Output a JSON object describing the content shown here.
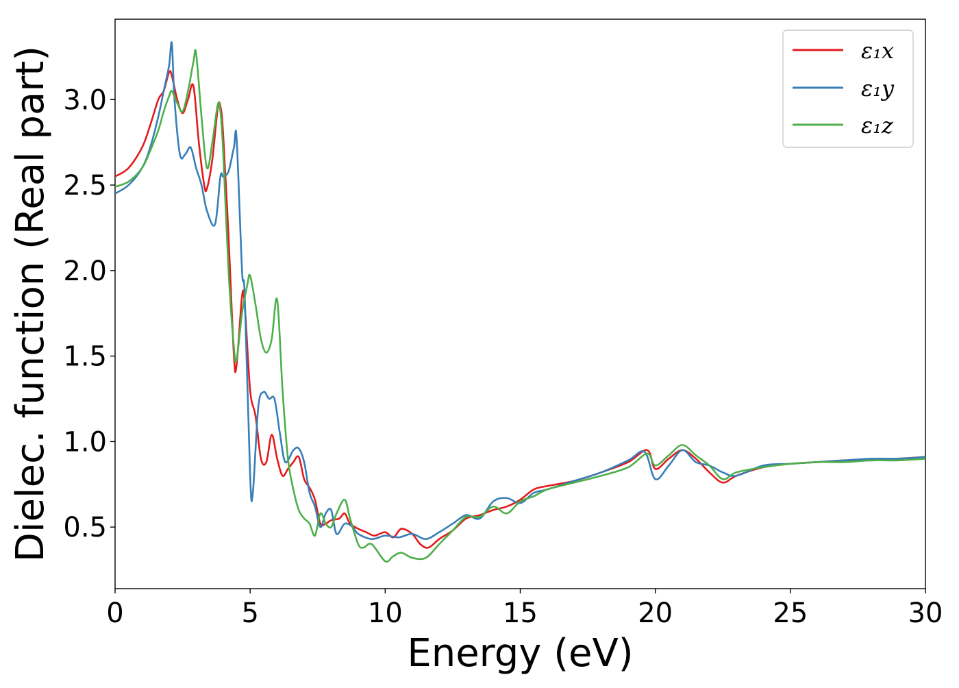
{
  "chart_data": {
    "type": "line",
    "title": "",
    "xlabel": "Energy (eV)",
    "ylabel": "Dielec. function (Real part)",
    "xlim": [
      0,
      30
    ],
    "ylim": [
      0.14,
      3.47
    ],
    "xticks": [
      0,
      5,
      10,
      15,
      20,
      25,
      30
    ],
    "yticks": [
      0.5,
      1.0,
      1.5,
      2.0,
      2.5,
      3.0
    ],
    "xtick_labels": [
      "0",
      "5",
      "10",
      "15",
      "20",
      "25",
      "30"
    ],
    "ytick_labels": [
      "0.5",
      "1.0",
      "1.5",
      "2.0",
      "2.5",
      "3.0"
    ],
    "grid": false,
    "legend_position": "top-right",
    "series": [
      {
        "name": "ε₁x",
        "color": "#e41a1c",
        "x": [
          0,
          0.5,
          1.0,
          1.3,
          1.6,
          1.8,
          2.0,
          2.1,
          2.3,
          2.5,
          2.7,
          2.9,
          3.1,
          3.3,
          3.4,
          3.6,
          3.8,
          3.9,
          4.0,
          4.2,
          4.4,
          4.5,
          4.7,
          4.8,
          5.0,
          5.2,
          5.4,
          5.6,
          5.8,
          6.0,
          6.2,
          6.4,
          6.6,
          6.8,
          7.0,
          7.2,
          7.4,
          7.6,
          7.8,
          8.0,
          8.3,
          8.5,
          8.7,
          9.0,
          9.3,
          9.6,
          10.0,
          10.3,
          10.6,
          11.0,
          11.3,
          11.6,
          12.0,
          12.5,
          13.0,
          13.5,
          14.0,
          14.5,
          15.0,
          15.5,
          16.0,
          17.0,
          18.0,
          19.0,
          19.7,
          20.0,
          20.5,
          21.0,
          21.5,
          22.0,
          22.5,
          23.0,
          24.0,
          25.0,
          26.0,
          27.0,
          28.0,
          29.0,
          30.0
        ],
        "y": [
          2.55,
          2.6,
          2.72,
          2.85,
          3.0,
          3.05,
          3.16,
          3.14,
          3.0,
          2.92,
          3.0,
          3.08,
          2.75,
          2.5,
          2.48,
          2.65,
          2.95,
          2.96,
          2.8,
          2.2,
          1.5,
          1.45,
          1.85,
          1.8,
          1.3,
          1.15,
          0.9,
          0.88,
          1.04,
          0.9,
          0.8,
          0.84,
          0.88,
          0.91,
          0.78,
          0.73,
          0.66,
          0.52,
          0.52,
          0.54,
          0.55,
          0.58,
          0.52,
          0.49,
          0.47,
          0.45,
          0.47,
          0.44,
          0.49,
          0.46,
          0.4,
          0.38,
          0.43,
          0.48,
          0.55,
          0.57,
          0.6,
          0.62,
          0.66,
          0.72,
          0.74,
          0.77,
          0.82,
          0.88,
          0.95,
          0.84,
          0.9,
          0.95,
          0.9,
          0.82,
          0.76,
          0.8,
          0.85,
          0.87,
          0.88,
          0.89,
          0.89,
          0.9,
          0.91
        ]
      },
      {
        "name": "ε₁y",
        "color": "#377eb8",
        "x": [
          0,
          0.5,
          1.0,
          1.3,
          1.6,
          1.8,
          2.0,
          2.1,
          2.2,
          2.4,
          2.6,
          2.8,
          3.0,
          3.2,
          3.4,
          3.7,
          3.9,
          4.0,
          4.2,
          4.4,
          4.5,
          4.7,
          4.8,
          5.0,
          5.1,
          5.3,
          5.5,
          5.7,
          5.9,
          6.1,
          6.3,
          6.6,
          6.8,
          7.0,
          7.2,
          7.4,
          7.6,
          7.8,
          8.0,
          8.2,
          8.5,
          8.8,
          9.0,
          9.5,
          10.0,
          10.5,
          11.0,
          11.5,
          12.0,
          12.5,
          13.0,
          13.5,
          14.0,
          14.5,
          15.0,
          15.5,
          16.0,
          17.0,
          18.0,
          19.0,
          19.6,
          20.0,
          20.5,
          21.0,
          21.5,
          22.0,
          22.5,
          23.0,
          24.0,
          25.0,
          26.0,
          27.0,
          28.0,
          29.0,
          30.0
        ],
        "y": [
          2.45,
          2.5,
          2.6,
          2.72,
          2.9,
          3.05,
          3.2,
          3.33,
          3.0,
          2.68,
          2.68,
          2.72,
          2.6,
          2.5,
          2.35,
          2.27,
          2.55,
          2.55,
          2.58,
          2.72,
          2.77,
          2.0,
          1.85,
          0.8,
          0.7,
          1.2,
          1.29,
          1.25,
          1.25,
          1.05,
          0.88,
          0.95,
          0.96,
          0.88,
          0.7,
          0.62,
          0.5,
          0.58,
          0.6,
          0.46,
          0.52,
          0.5,
          0.46,
          0.43,
          0.45,
          0.44,
          0.46,
          0.43,
          0.47,
          0.52,
          0.57,
          0.55,
          0.65,
          0.67,
          0.64,
          0.7,
          0.72,
          0.77,
          0.82,
          0.89,
          0.94,
          0.78,
          0.86,
          0.95,
          0.88,
          0.86,
          0.82,
          0.8,
          0.86,
          0.87,
          0.88,
          0.89,
          0.9,
          0.9,
          0.91
        ]
      },
      {
        "name": "ε₁z",
        "color": "#4daf4a",
        "x": [
          0,
          0.5,
          1.0,
          1.3,
          1.6,
          1.8,
          2.0,
          2.1,
          2.3,
          2.5,
          2.7,
          2.9,
          3.0,
          3.2,
          3.4,
          3.6,
          3.8,
          3.9,
          4.0,
          4.2,
          4.4,
          4.5,
          4.7,
          4.9,
          5.0,
          5.2,
          5.4,
          5.6,
          5.8,
          6.0,
          6.2,
          6.4,
          6.6,
          6.8,
          7.0,
          7.2,
          7.4,
          7.6,
          7.8,
          8.0,
          8.2,
          8.5,
          8.7,
          9.0,
          9.2,
          9.5,
          10.0,
          10.3,
          10.6,
          11.0,
          11.5,
          12.0,
          12.5,
          13.0,
          13.5,
          14.0,
          14.5,
          15.0,
          15.5,
          16.0,
          17.0,
          18.0,
          19.0,
          19.7,
          20.0,
          20.5,
          21.0,
          21.5,
          22.0,
          22.5,
          23.0,
          24.0,
          25.0,
          26.0,
          27.0,
          28.0,
          29.0,
          30.0
        ],
        "y": [
          2.49,
          2.52,
          2.6,
          2.7,
          2.82,
          2.93,
          3.02,
          3.05,
          2.98,
          2.93,
          3.05,
          3.22,
          3.27,
          2.9,
          2.6,
          2.75,
          2.97,
          2.93,
          2.7,
          2.0,
          1.55,
          1.48,
          1.75,
          1.92,
          1.97,
          1.8,
          1.6,
          1.52,
          1.6,
          1.83,
          1.3,
          0.9,
          0.72,
          0.6,
          0.55,
          0.52,
          0.45,
          0.58,
          0.52,
          0.5,
          0.58,
          0.66,
          0.55,
          0.4,
          0.38,
          0.4,
          0.3,
          0.33,
          0.35,
          0.32,
          0.32,
          0.4,
          0.48,
          0.56,
          0.56,
          0.62,
          0.58,
          0.65,
          0.68,
          0.72,
          0.76,
          0.8,
          0.85,
          0.93,
          0.86,
          0.92,
          0.98,
          0.92,
          0.86,
          0.78,
          0.82,
          0.85,
          0.87,
          0.88,
          0.88,
          0.89,
          0.89,
          0.9
        ]
      }
    ]
  }
}
